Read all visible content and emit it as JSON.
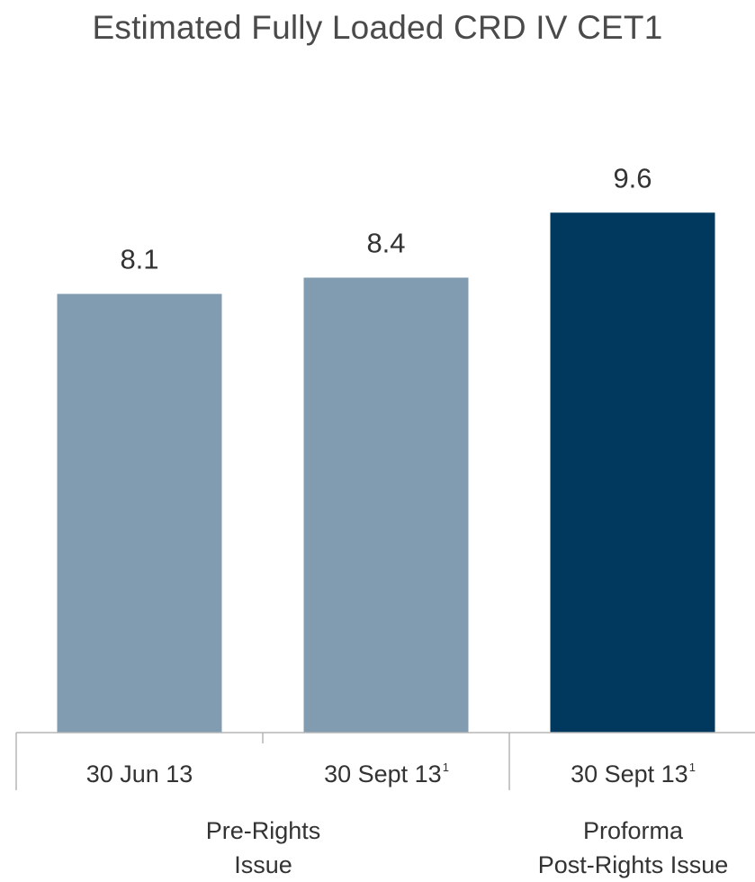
{
  "chart_data": {
    "type": "bar",
    "title": "Estimated Fully Loaded CRD IV CET1",
    "categories": [
      "30 Jun 13",
      "30 Sept 13",
      "30 Sept 13"
    ],
    "category_footnotes": [
      "",
      "1",
      "1"
    ],
    "values": [
      8.1,
      8.4,
      9.6
    ],
    "data_labels": [
      "8.1",
      "8.4",
      "9.6"
    ],
    "bar_colors": [
      "#819cb0",
      "#819cb0",
      "#00395d"
    ],
    "ylim": [
      0,
      11.2
    ],
    "groups": [
      {
        "lines": [
          "Pre-Rights",
          "Issue"
        ],
        "categories": [
          0,
          1
        ]
      },
      {
        "lines": [
          "Proforma",
          "Post-Rights Issue"
        ],
        "categories": [
          2
        ]
      }
    ]
  }
}
